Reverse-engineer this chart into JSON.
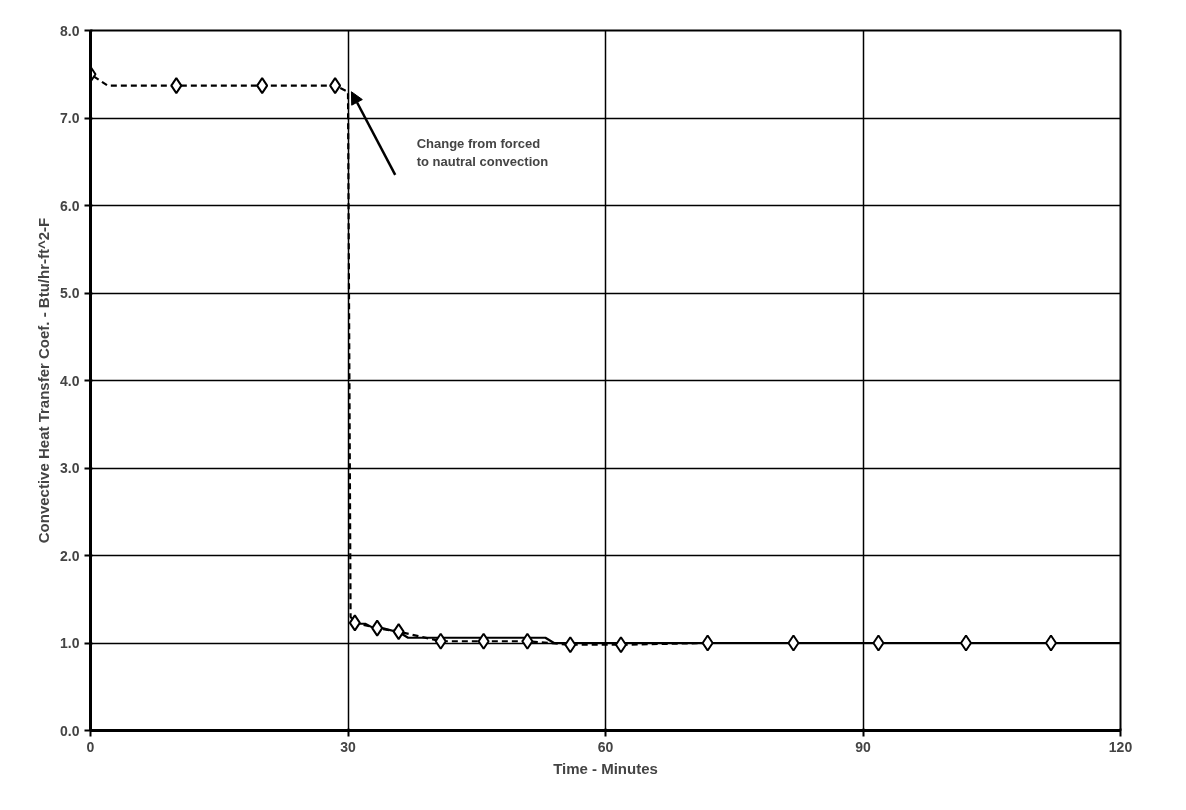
{
  "chart_data": {
    "type": "line",
    "xlabel": "Time - Minutes",
    "ylabel": "Convective Heat Transfer Coef. - Btu/hr-ft^2-F",
    "xlim": [
      0,
      120
    ],
    "xticks": [
      0,
      30,
      60,
      90,
      120
    ],
    "ylim": [
      0,
      8
    ],
    "yticks": [
      {
        "value": 0,
        "label": "0.0"
      },
      {
        "value": 1,
        "label": "1.0"
      },
      {
        "value": 2,
        "label": "2.0"
      },
      {
        "value": 3,
        "label": "3.0"
      },
      {
        "value": 4,
        "label": "4.0"
      },
      {
        "value": 5,
        "label": "5.0"
      },
      {
        "value": 6,
        "label": "6.0"
      },
      {
        "value": 7,
        "label": "7.0"
      },
      {
        "value": 8,
        "label": "8.0"
      }
    ],
    "grid": true,
    "series": [
      {
        "line_style": "dashed",
        "marker": "none",
        "color": "#000000",
        "x": [
          0,
          0,
          2,
          10,
          20,
          28.5,
          30,
          30.3,
          30.8,
          33.4,
          35.9,
          40.8,
          45.8,
          50.9,
          55.9,
          61.8,
          71.9,
          81.9,
          91.8,
          102,
          111.9,
          120
        ],
        "values": [
          0,
          7.5,
          7.37,
          7.37,
          7.37,
          7.37,
          7.3,
          1.3,
          1.23,
          1.17,
          1.13,
          1.02,
          1.02,
          1.02,
          0.98,
          0.98,
          1.0,
          1.0,
          1.0,
          1.0,
          1.0,
          1.0
        ]
      },
      {
        "line_style": "solid",
        "marker": "none",
        "color": "#000000",
        "x": [
          30.3,
          32,
          33,
          34,
          36,
          37,
          53,
          54,
          120
        ],
        "values": [
          1.22,
          1.22,
          1.17,
          1.17,
          1.12,
          1.06,
          1.06,
          1.0,
          1.0
        ]
      },
      {
        "type": "scatter",
        "marker": "diamond",
        "color": "#000000",
        "x": [
          0,
          10,
          20,
          28.5,
          30.8,
          33.4,
          35.9,
          40.8,
          45.8,
          50.9,
          55.9,
          61.8,
          71.9,
          81.9,
          91.8,
          102,
          111.9
        ],
        "values": [
          7.5,
          7.37,
          7.37,
          7.37,
          1.23,
          1.17,
          1.13,
          1.02,
          1.02,
          1.02,
          0.98,
          0.98,
          1.0,
          1.0,
          1.0,
          1.0,
          1.0
        ]
      }
    ],
    "annotations": [
      "Change from forced\nto nautral convection"
    ]
  }
}
